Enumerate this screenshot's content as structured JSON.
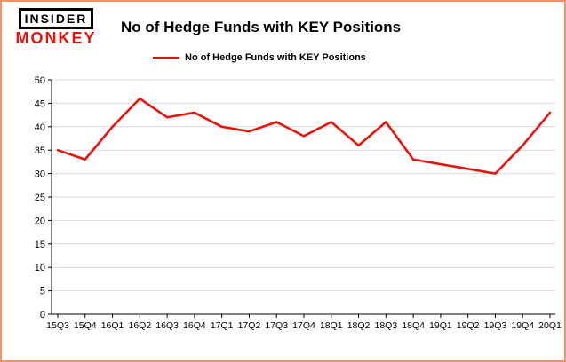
{
  "logo": {
    "line1": "INSIDER",
    "line2": "MONKEY"
  },
  "header": {
    "title": "No of Hedge Funds with KEY Positions"
  },
  "legend": {
    "label": "No of Hedge Funds with KEY Positions"
  },
  "colors": {
    "line": "#e8140c",
    "logo_red": "#e8140c",
    "border": "#f0926a",
    "grid": "#d9d9d9",
    "axis": "#000000",
    "background": "#ffffff"
  },
  "chart_data": {
    "type": "line",
    "title": "No of Hedge Funds with KEY Positions",
    "xlabel": "",
    "ylabel": "",
    "categories": [
      "15Q3",
      "15Q4",
      "16Q1",
      "16Q2",
      "16Q3",
      "16Q4",
      "17Q1",
      "17Q2",
      "17Q3",
      "17Q4",
      "18Q1",
      "18Q2",
      "18Q3",
      "18Q4",
      "19Q1",
      "19Q2",
      "19Q3",
      "19Q4",
      "20Q1"
    ],
    "series": [
      {
        "name": "No of Hedge Funds with KEY Positions",
        "color": "#e8140c",
        "values": [
          35,
          33,
          40,
          46,
          42,
          43,
          40,
          39,
          41,
          38,
          41,
          36,
          41,
          33,
          32,
          31,
          30,
          36,
          43
        ]
      }
    ],
    "ylim": [
      0,
      50
    ],
    "yticks": [
      0,
      5,
      10,
      15,
      20,
      25,
      30,
      35,
      40,
      45,
      50
    ],
    "grid": "horizontal",
    "legend_position": "top-left"
  }
}
